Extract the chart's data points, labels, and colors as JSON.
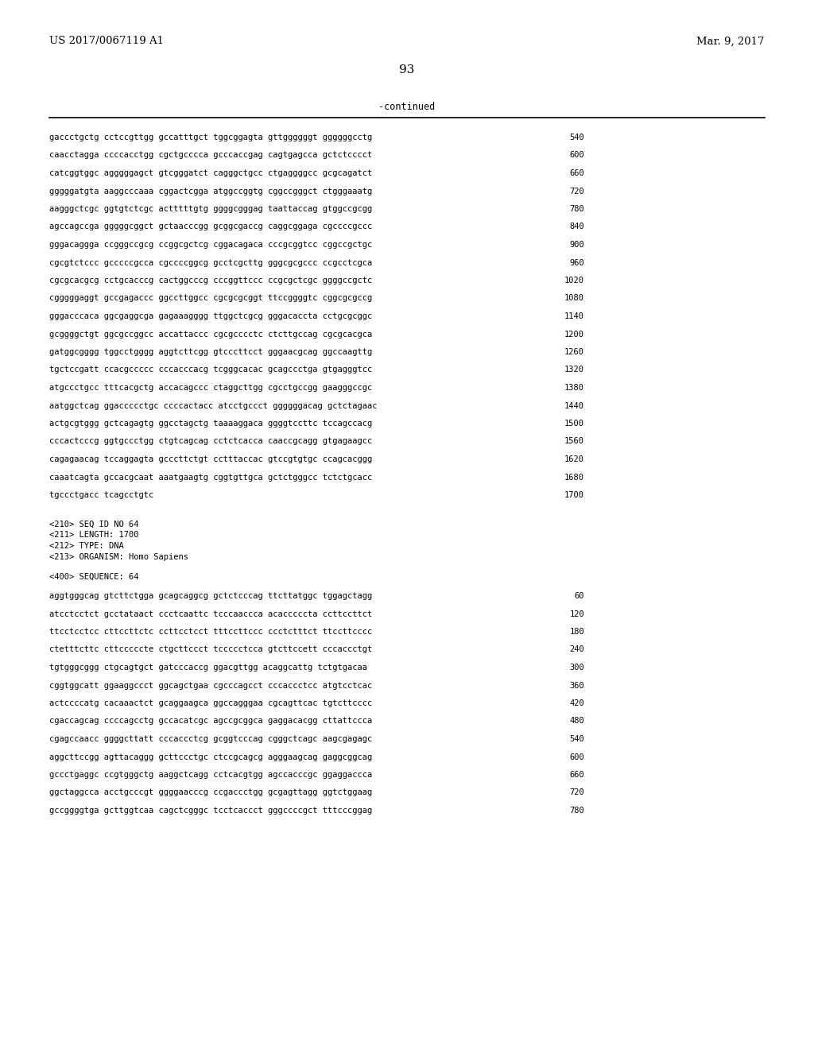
{
  "header_left": "US 2017/0067119 A1",
  "header_right": "Mar. 9, 2017",
  "page_number": "93",
  "continued_label": "-continued",
  "background_color": "#ffffff",
  "text_color": "#000000",
  "sequence_lines_top": [
    [
      "gaccctgctg cctccgttgg gccatttgct tggcggagta gttggggggt ggggggcctg",
      "540"
    ],
    [
      "caacctagga ccccacctgg cgctgcccca gcccaccgag cagtgagcca gctctcccct",
      "600"
    ],
    [
      "catcggtggc agggggagct gtcgggatct cagggctgcc ctgaggggcc gcgcagatct",
      "660"
    ],
    [
      "gggggatgta aaggcccaaa cggactcgga atggccggtg cggccgggct ctgggaaatg",
      "720"
    ],
    [
      "aagggctcgc ggtgtctcgc actttttgtg ggggcgggag taattaccag gtggccgcgg",
      "780"
    ],
    [
      "agccagccga gggggcggct gctaacccgg gcggcgaccg caggcggaga cgccccgccc",
      "840"
    ],
    [
      "gggacaggga ccgggccgcg ccggcgctcg cggacagaca cccgcggtcc cggccgctgc",
      "900"
    ],
    [
      "cgcgtctccc gcccccgcca cgccccggcg gcctcgcttg gggcgcgccc ccgcctcgca",
      "960"
    ],
    [
      "cgcgcacgcg cctgcacccg cactggcccg cccggttccc ccgcgctcgc ggggccgctc",
      "1020"
    ],
    [
      "cgggggaggt gccgagaccc ggccttggcc cgcgcgcggt ttccggggtc cggcgcgccg",
      "1080"
    ],
    [
      "gggacccaca ggcgaggcga gagaaagggg ttggctcgcg gggacaccta cctgcgcggc",
      "1140"
    ],
    [
      "gcggggctgt ggcgccggcc accattaccc cgcgcccctc ctcttgccag cgcgcacgca",
      "1200"
    ],
    [
      "gatggcgggg tggcctgggg aggtcttcgg gtcccttcct gggaacgcag ggccaagttg",
      "1260"
    ],
    [
      "tgctccgatt ccacgccccc cccacccacg tcgggcacac gcagccctga gtgagggtcc",
      "1320"
    ],
    [
      "atgccctgcc tttcacgctg accacagccc ctaggcttgg cgcctgccgg gaagggccgc",
      "1380"
    ],
    [
      "aatggctcag ggaccccctgc ccccactacc atcctgccct ggggggacag gctctagaac",
      "1440"
    ],
    [
      "actgcgtggg gctcagagtg ggcctagctg taaaaggaca ggggtccttc tccagccacg",
      "1500"
    ],
    [
      "cccactcccg ggtgccctgg ctgtcagcag cctctcacca caaccgcagg gtgagaagcc",
      "1560"
    ],
    [
      "cagagaacag tccaggagta gcccttctgt cctttaccac gtccgtgtgc ccagcacggg",
      "1620"
    ],
    [
      "caaatcagta gccacgcaat aaatgaagtg cggtgttgca gctctgggcc tctctgcacc",
      "1680"
    ],
    [
      "tgccctgacc tcagcctgtc",
      "1700"
    ]
  ],
  "metadata_lines": [
    "<210> SEQ ID NO 64",
    "<211> LENGTH: 1700",
    "<212> TYPE: DNA",
    "<213> ORGANISM: Homo Sapiens"
  ],
  "sequence_label": "<400> SEQUENCE: 64",
  "sequence_lines_bottom": [
    [
      "aggtgggcag gtcttctgga gcagcaggcg gctctcccag ttcttatggc tggagctagg",
      "60"
    ],
    [
      "atcctcctct gcctataact ccctcaattc tcccaaccca acacccccta ccttccttct",
      "120"
    ],
    [
      "ttcctcctcc cttccttctc ccttcctcct tttccttccc ccctctttct ttccttcccc",
      "180"
    ],
    [
      "ctetttcttc cttcccccte ctgcttccct tccccctcca gtcttccett cccaccctgt",
      "240"
    ],
    [
      "tgtgggcggg ctgcagtgct gatcccaccg ggacgttgg acaggcattg tctgtgacaa",
      "300"
    ],
    [
      "cggtggcatt ggaaggccct ggcagctgaa cgcccagcct cccaccctcc atgtcctcac",
      "360"
    ],
    [
      "actccccatg cacaaactct gcaggaagca ggccagggaa cgcagttcac tgtcttcccc",
      "420"
    ],
    [
      "cgaccagcag ccccagcctg gccacatcgc agccgcggca gaggacacgg cttattccca",
      "480"
    ],
    [
      "cgagccaacc ggggcttatt cccaccctcg gcggtcccag cgggctcagc aagcgagagc",
      "540"
    ],
    [
      "aggcttccgg agttacaggg gcttccctgc ctccgcagcg agggaagcag gaggcggcag",
      "600"
    ],
    [
      "gccctgaggc ccgtgggctg aaggctcagg cctcacgtgg agccacccgc ggaggaccca",
      "660"
    ],
    [
      "ggctaggcca acctgcccgt ggggaacccg ccgaccctgg gcgagttagg ggtctggaag",
      "720"
    ],
    [
      "gccggggtga gcttggtcaa cagctcgggc tcctcaccct gggccccgct tttcccggag",
      "780"
    ]
  ]
}
